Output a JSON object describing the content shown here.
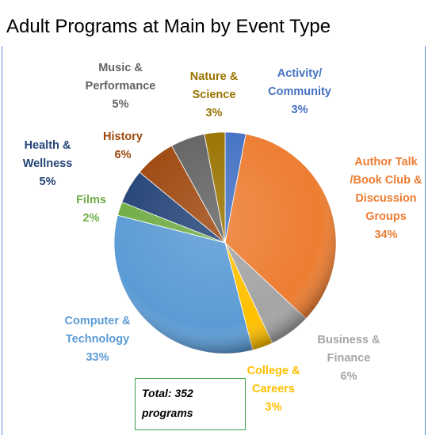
{
  "chart_data": {
    "type": "pie",
    "title": "Adult Programs at Main by Event Type",
    "categories": [
      "Activity/ Community",
      "Author Talk /Book Club & Discussion Groups",
      "Business & Finance",
      "College & Careers",
      "Computer & Technology",
      "Films",
      "Health & Wellness",
      "History",
      "Music & Performance",
      "Nature & Science"
    ],
    "values": [
      3,
      34,
      6,
      3,
      33,
      2,
      5,
      6,
      5,
      3
    ],
    "value_labels": [
      "3%",
      "34%",
      "6%",
      "3%",
      "33%",
      "2%",
      "5%",
      "6%",
      "5%",
      "3%"
    ],
    "colors": [
      "#4472c4",
      "#ed7d31",
      "#a5a5a5",
      "#ffc000",
      "#5b9bd5",
      "#70ad47",
      "#264478",
      "#9e480e",
      "#636363",
      "#997300"
    ],
    "annotations": [
      "Total: 352 programs"
    ]
  }
}
